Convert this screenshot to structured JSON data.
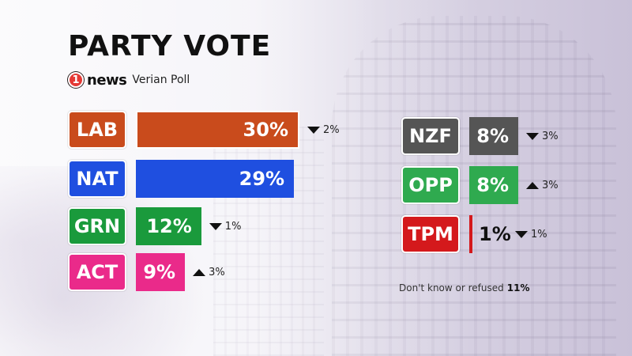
{
  "title": "PARTY VOTE",
  "source": {
    "logo_mark": "1",
    "logo_text": "news",
    "poll": "Verian Poll"
  },
  "footnote": {
    "label": "Don't know or refused",
    "value": "11%"
  },
  "chart_data": {
    "type": "bar",
    "title": "PARTY VOTE",
    "categories": [
      "LAB",
      "NAT",
      "GRN",
      "ACT",
      "NZF",
      "OPP",
      "TPM"
    ],
    "values": [
      30,
      29,
      12,
      9,
      8,
      8,
      1
    ],
    "unit": "%",
    "parties": [
      {
        "name": "LAB",
        "value": 30,
        "value_label": "30%",
        "change": "2%",
        "direction": "down",
        "color": "#c94b1c"
      },
      {
        "name": "NAT",
        "value": 29,
        "value_label": "29%",
        "change": "",
        "direction": "none",
        "color": "#1f4fe0"
      },
      {
        "name": "GRN",
        "value": 12,
        "value_label": "12%",
        "change": "1%",
        "direction": "down",
        "color": "#1a9a3c"
      },
      {
        "name": "ACT",
        "value": 9,
        "value_label": "9%",
        "change": "3%",
        "direction": "up",
        "color": "#ea2a8a"
      },
      {
        "name": "NZF",
        "value": 8,
        "value_label": "8%",
        "change": "3%",
        "direction": "down",
        "color": "#555555"
      },
      {
        "name": "OPP",
        "value": 8,
        "value_label": "8%",
        "change": "3%",
        "direction": "up",
        "color": "#2faa4f"
      },
      {
        "name": "TPM",
        "value": 1,
        "value_label": "1%",
        "change": "1%",
        "direction": "down",
        "color": "#d4191c"
      }
    ]
  }
}
